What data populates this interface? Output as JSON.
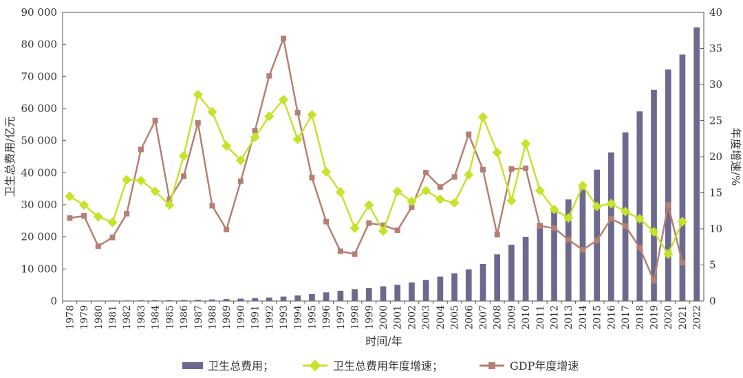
{
  "chart_data": {
    "type": "bar+line",
    "xlabel": "时间/年",
    "ylabel_left": "卫生总费用/亿元",
    "ylabel_right": "年度增速/%",
    "ylim_left": [
      0,
      90000
    ],
    "ylim_right": [
      0,
      40
    ],
    "yticks_left": [
      "0",
      "10 000",
      "20 000",
      "30 000",
      "40 000",
      "50 000",
      "60 000",
      "70 000",
      "80 000",
      "90 000"
    ],
    "yticks_right": [
      "0",
      "5",
      "10",
      "15",
      "20",
      "25",
      "30",
      "35",
      "40"
    ],
    "categories": [
      "1978",
      "1979",
      "1980",
      "1981",
      "1982",
      "1983",
      "1984",
      "1985",
      "1986",
      "1987",
      "1988",
      "1989",
      "1990",
      "1991",
      "1992",
      "1993",
      "1994",
      "1995",
      "1996",
      "1997",
      "1998",
      "1999",
      "2000",
      "2001",
      "2002",
      "2003",
      "2004",
      "2005",
      "2006",
      "2007",
      "2008",
      "2009",
      "2010",
      "2011",
      "2012",
      "2013",
      "2014",
      "2015",
      "2016",
      "2017",
      "2018",
      "2019",
      "2020",
      "2021",
      "2022"
    ],
    "legend": {
      "placement": "bottom"
    },
    "series": [
      {
        "name": "卫生总费用；",
        "type": "bar",
        "axis": "left",
        "color": "#6b6a8e",
        "values": [
          110,
          121,
          143,
          160,
          177,
          208,
          243,
          279,
          316,
          379,
          488,
          615,
          747,
          893,
          1097,
          1378,
          1761,
          2155,
          2710,
          3196,
          3679,
          4048,
          4587,
          5026,
          5790,
          6584,
          7590,
          8660,
          9843,
          11574,
          14535,
          17542,
          19980,
          24346,
          28119,
          31669,
          35312,
          40975,
          46345,
          52598,
          59122,
          65841,
          72175,
          76845,
          85327
        ]
      },
      {
        "name": "卫生总费用年度增速；",
        "type": "line",
        "axis": "right",
        "color": "#c5e32b",
        "values": [
          14.5,
          13.3,
          11.7,
          10.9,
          16.8,
          16.7,
          15.2,
          13.3,
          20.1,
          28.6,
          26.2,
          21.5,
          19.5,
          22.7,
          25.6,
          27.9,
          22.4,
          25.8,
          17.9,
          15.1,
          10.1,
          13.3,
          9.7,
          15.2,
          13.8,
          15.3,
          14.1,
          13.6,
          17.5,
          25.5,
          20.6,
          13.9,
          21.8,
          15.3,
          12.7,
          11.5,
          16.0,
          13.1,
          13.5,
          12.4,
          11.4,
          9.6,
          6.5,
          11.0,
          null
        ]
      },
      {
        "name": "GDP年度增速",
        "type": "line",
        "axis": "right",
        "color": "#b57f72",
        "values": [
          11.5,
          11.8,
          7.6,
          8.8,
          12.1,
          21.0,
          25.0,
          14.1,
          17.3,
          24.7,
          13.2,
          9.9,
          16.6,
          23.6,
          31.2,
          36.4,
          26.1,
          17.1,
          11.0,
          6.9,
          6.5,
          10.8,
          10.5,
          9.8,
          13.0,
          17.8,
          15.8,
          17.2,
          23.1,
          18.2,
          9.2,
          18.3,
          18.4,
          10.4,
          10.1,
          8.5,
          7.1,
          8.4,
          11.4,
          10.4,
          7.4,
          2.8,
          13.3,
          5.3,
          null
        ]
      }
    ]
  }
}
